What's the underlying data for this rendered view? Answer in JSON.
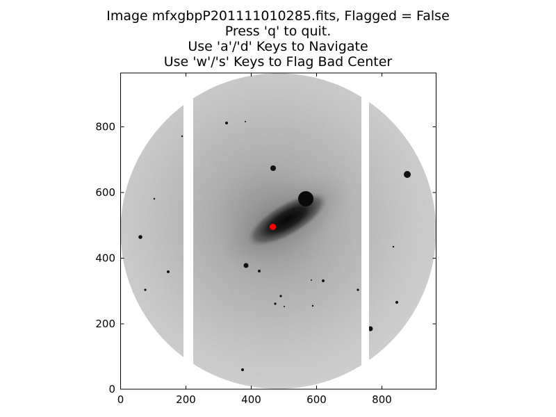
{
  "window": {
    "title_lines": [
      "Image mfxgbpP201111010285.fits, Flagged = False",
      "Press 'q' to quit.",
      "Use 'a'/'d' Keys to Navigate",
      "Use 'w'/'s' Keys to Flag Bad Center"
    ]
  },
  "image": {
    "width": 966,
    "height": 966,
    "center_x": 466,
    "center_y": 496,
    "center_marker_color": "#ff0000",
    "gap_color": "#ffffff"
  },
  "chart_data": {
    "type": "image",
    "xlim": [
      0,
      966
    ],
    "ylim": [
      0,
      966
    ],
    "xticks": [
      0,
      200,
      400,
      600,
      800
    ],
    "yticks": [
      0,
      200,
      400,
      600,
      800
    ],
    "xtick_labels": [
      "0",
      "200",
      "400",
      "600",
      "800"
    ],
    "ytick_labels": [
      "0",
      "200",
      "400",
      "600",
      "800"
    ],
    "grid": false
  }
}
